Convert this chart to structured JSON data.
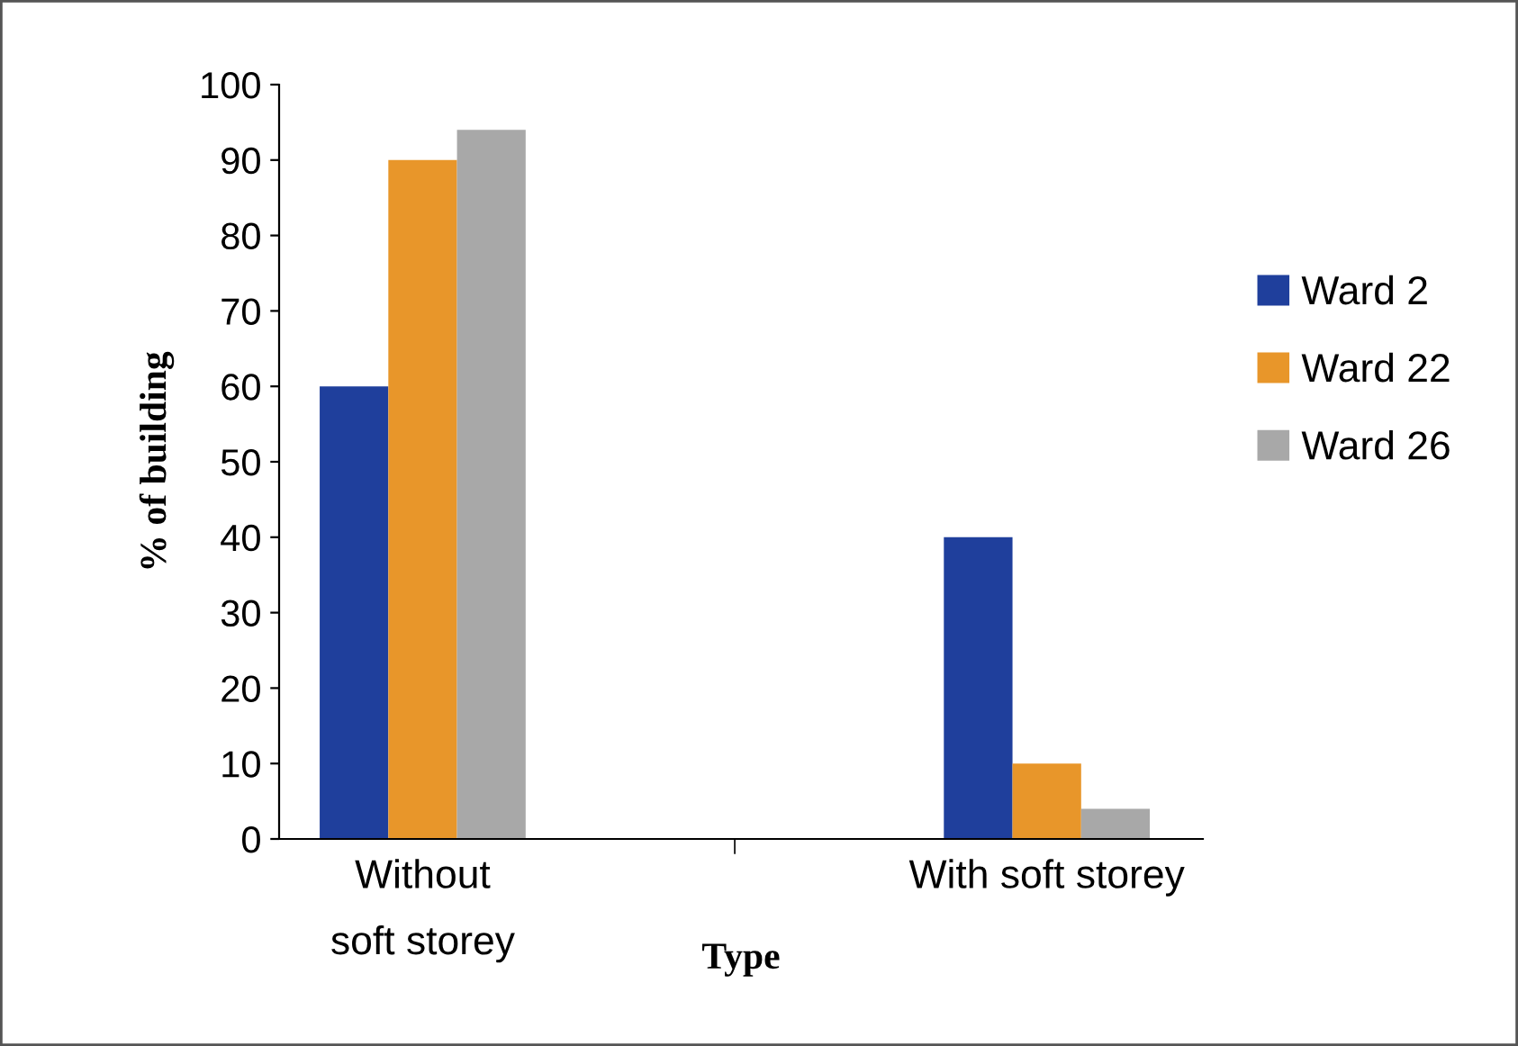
{
  "chart_data": {
    "type": "bar",
    "xlabel": "Type",
    "ylabel": "% of building",
    "categories": [
      "Without\nsoft storey",
      "With soft storey"
    ],
    "series": [
      {
        "name": "Ward 2",
        "color": "#1f3f9c",
        "values": [
          60,
          40
        ]
      },
      {
        "name": "Ward 22",
        "color": "#e8962a",
        "values": [
          90,
          10
        ]
      },
      {
        "name": "Ward 26",
        "color": "#a8a8a8",
        "values": [
          94,
          4
        ]
      }
    ],
    "ylim": [
      0,
      100
    ],
    "yticks": [
      0,
      10,
      20,
      30,
      40,
      50,
      60,
      70,
      80,
      90,
      100
    ],
    "grid": false,
    "legend": "right"
  }
}
